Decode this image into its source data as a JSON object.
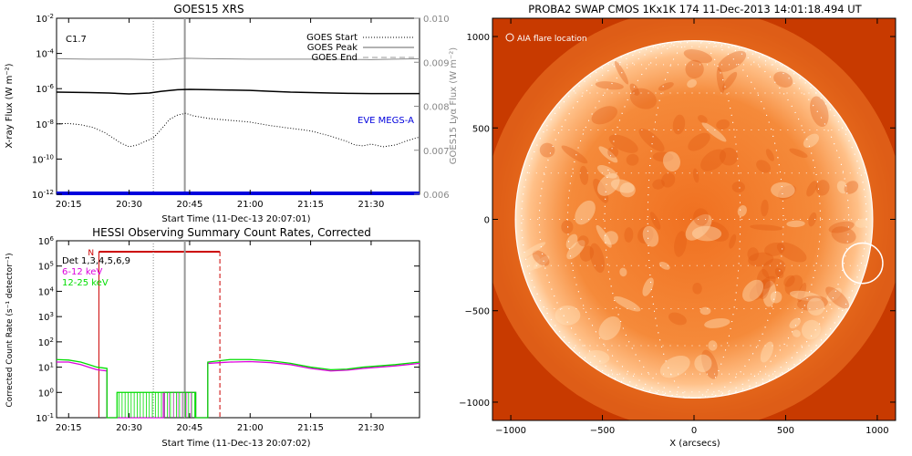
{
  "chart_data": [
    {
      "id": "goes",
      "type": "line",
      "title": "GOES15 XRS",
      "xlabel": "Start Time (11-Dec-13 20:07:01)",
      "ylabel": "X-ray Flux (W m⁻²)",
      "y2label": "GOES15 Lyα Flux (W m⁻²)",
      "xlim": [
        12.0,
        102.0
      ],
      "x_unit": "minutes after 20:00",
      "x_ticks": [
        {
          "v": 15,
          "label": "20:15"
        },
        {
          "v": 30,
          "label": "20:30"
        },
        {
          "v": 45,
          "label": "20:45"
        },
        {
          "v": 60,
          "label": "21:00"
        },
        {
          "v": 75,
          "label": "21:15"
        },
        {
          "v": 90,
          "label": "21:30"
        }
      ],
      "ylim_log": [
        -12,
        -2
      ],
      "y_ticks": [
        {
          "v": -2,
          "base": "10",
          "exp": "-2"
        },
        {
          "v": -4,
          "base": "10",
          "exp": "-4"
        },
        {
          "v": -6,
          "base": "10",
          "exp": "-6"
        },
        {
          "v": -8,
          "base": "10",
          "exp": "-8"
        },
        {
          "v": -10,
          "base": "10",
          "exp": "-10"
        },
        {
          "v": -12,
          "base": "10",
          "exp": "-12"
        }
      ],
      "y2lim": [
        0.006,
        0.01
      ],
      "y2_ticks": [
        "0.006",
        "0.007",
        "0.008",
        "0.009",
        "0.010"
      ],
      "flare_class": "C1.7",
      "markers": {
        "start": 36.0,
        "peak": 43.8,
        "end": null
      },
      "legend": [
        {
          "label": "GOES Start",
          "style": "dotted"
        },
        {
          "label": "GOES Peak",
          "style": "solid"
        },
        {
          "label": "GOES End",
          "style": "dashed"
        }
      ],
      "eve_label": "EVE MEGS-A",
      "series": [
        {
          "axis": "right",
          "color": "#888888",
          "style": "solid",
          "points": [
            [
              12,
              0.00908
            ],
            [
              20,
              0.00907
            ],
            [
              30,
              0.00907
            ],
            [
              36,
              0.00906
            ],
            [
              40,
              0.00907
            ],
            [
              44,
              0.00909
            ],
            [
              50,
              0.00908
            ],
            [
              60,
              0.00907
            ],
            [
              75,
              0.00907
            ],
            [
              90,
              0.00906
            ],
            [
              102,
              0.00908
            ]
          ]
        },
        {
          "axis": "left",
          "color": "#000000",
          "style": "solid",
          "points": [
            [
              12,
              -6.2
            ],
            [
              20,
              -6.22
            ],
            [
              25,
              -6.25
            ],
            [
              30,
              -6.3
            ],
            [
              35,
              -6.25
            ],
            [
              38,
              -6.15
            ],
            [
              42,
              -6.06
            ],
            [
              45,
              -6.04
            ],
            [
              50,
              -6.06
            ],
            [
              55,
              -6.08
            ],
            [
              60,
              -6.1
            ],
            [
              65,
              -6.15
            ],
            [
              70,
              -6.2
            ],
            [
              75,
              -6.22
            ],
            [
              80,
              -6.25
            ],
            [
              85,
              -6.27
            ],
            [
              90,
              -6.28
            ],
            [
              95,
              -6.28
            ],
            [
              102,
              -6.28
            ]
          ]
        },
        {
          "axis": "left",
          "color": "#000000",
          "style": "dotted",
          "points": [
            [
              12,
              -8.0
            ],
            [
              15,
              -7.98
            ],
            [
              18,
              -8.05
            ],
            [
              21,
              -8.2
            ],
            [
              24,
              -8.5
            ],
            [
              26,
              -8.8
            ],
            [
              28,
              -9.1
            ],
            [
              30,
              -9.3
            ],
            [
              32,
              -9.2
            ],
            [
              34,
              -9.0
            ],
            [
              36,
              -8.8
            ],
            [
              38,
              -8.3
            ],
            [
              40,
              -7.75
            ],
            [
              42,
              -7.5
            ],
            [
              44,
              -7.4
            ],
            [
              46,
              -7.55
            ],
            [
              50,
              -7.7
            ],
            [
              55,
              -7.8
            ],
            [
              60,
              -7.9
            ],
            [
              65,
              -8.1
            ],
            [
              70,
              -8.25
            ],
            [
              75,
              -8.4
            ],
            [
              80,
              -8.7
            ],
            [
              84,
              -9.0
            ],
            [
              86,
              -9.2
            ],
            [
              88,
              -9.25
            ],
            [
              90,
              -9.15
            ],
            [
              93,
              -9.3
            ],
            [
              96,
              -9.2
            ],
            [
              99,
              -8.95
            ],
            [
              102,
              -8.75
            ]
          ]
        },
        {
          "axis": "left",
          "color": "#0000dd",
          "style": "thick",
          "points": [
            [
              12,
              -11.95
            ],
            [
              102,
              -11.95
            ]
          ]
        }
      ]
    },
    {
      "id": "hessi",
      "type": "line",
      "title": "HESSI Observing Summary Count Rates, Corrected",
      "xlabel": "Start Time (11-Dec-13 20:07:02)",
      "ylabel": "Corrected Count Rate (s⁻¹ detector⁻¹)",
      "xlim": [
        12.0,
        102.0
      ],
      "x_unit": "minutes after 20:00",
      "x_ticks": [
        {
          "v": 15,
          "label": "20:15"
        },
        {
          "v": 30,
          "label": "20:30"
        },
        {
          "v": 45,
          "label": "20:45"
        },
        {
          "v": 60,
          "label": "21:00"
        },
        {
          "v": 75,
          "label": "21:15"
        },
        {
          "v": 90,
          "label": "21:30"
        }
      ],
      "ylim_log": [
        -1,
        6
      ],
      "y_ticks": [
        {
          "v": -1,
          "base": "10",
          "exp": "-1"
        },
        {
          "v": 0,
          "base": "10",
          "exp": "0"
        },
        {
          "v": 1,
          "base": "10",
          "exp": "1"
        },
        {
          "v": 2,
          "base": "10",
          "exp": "2"
        },
        {
          "v": 3,
          "base": "10",
          "exp": "3"
        },
        {
          "v": 4,
          "base": "10",
          "exp": "4"
        },
        {
          "v": 5,
          "base": "10",
          "exp": "5"
        },
        {
          "v": 6,
          "base": "10",
          "exp": "6"
        }
      ],
      "night_label": "N",
      "night_range": [
        22.5,
        52.5
      ],
      "markers": {
        "start": 36.0,
        "peak": 43.8,
        "end": 52.5
      },
      "legend": [
        {
          "label": "Det 1,3,4,5,6,9",
          "color": "#000000"
        },
        {
          "label": "6-12 keV",
          "color": "#dd00dd"
        },
        {
          "label": "12-25 keV",
          "color": "#00dd00"
        }
      ],
      "series": [
        {
          "name": "6-12 keV",
          "color": "#dd00dd",
          "points": [
            [
              12,
              1.2
            ],
            [
              15,
              1.2
            ],
            [
              18,
              1.1
            ],
            [
              20,
              1.0
            ],
            [
              22,
              0.9
            ],
            [
              24.5,
              0.85
            ],
            [
              24.5,
              -1
            ],
            [
              38.5,
              -1
            ],
            [
              38.5,
              0.0
            ],
            [
              43,
              0.0
            ],
            [
              46.5,
              0.0
            ],
            [
              46.5,
              -1
            ],
            [
              49.5,
              -1
            ],
            [
              49.5,
              1.15
            ],
            [
              55,
              1.2
            ],
            [
              60,
              1.22
            ],
            [
              65,
              1.18
            ],
            [
              70,
              1.1
            ],
            [
              75,
              0.95
            ],
            [
              80,
              0.85
            ],
            [
              84,
              0.88
            ],
            [
              88,
              0.95
            ],
            [
              92,
              1.0
            ],
            [
              96,
              1.05
            ],
            [
              99,
              1.1
            ],
            [
              102,
              1.15
            ]
          ]
        },
        {
          "name": "12-25 keV",
          "color": "#00dd00",
          "points": [
            [
              12,
              1.3
            ],
            [
              15,
              1.28
            ],
            [
              18,
              1.2
            ],
            [
              20,
              1.1
            ],
            [
              22,
              1.0
            ],
            [
              24.5,
              0.95
            ],
            [
              24.5,
              -1
            ],
            [
              27,
              -1
            ],
            [
              27,
              0.0
            ],
            [
              46.5,
              0.0
            ],
            [
              46.5,
              -1
            ],
            [
              49.5,
              -1
            ],
            [
              49.5,
              1.2
            ],
            [
              55,
              1.3
            ],
            [
              60,
              1.3
            ],
            [
              65,
              1.25
            ],
            [
              70,
              1.15
            ],
            [
              75,
              1.0
            ],
            [
              80,
              0.9
            ],
            [
              84,
              0.92
            ],
            [
              88,
              1.0
            ],
            [
              92,
              1.05
            ],
            [
              96,
              1.1
            ],
            [
              99,
              1.15
            ],
            [
              102,
              1.2
            ]
          ]
        }
      ]
    },
    {
      "id": "swap",
      "type": "image",
      "title": "PROBA2 SWAP CMOS 1Kx1K 174 11-Dec-2013 14:01:18.494 UT",
      "xlabel": "X (arcsecs)",
      "xlim": [
        -1100,
        1100
      ],
      "ylim": [
        -1100,
        1100
      ],
      "x_ticks": [
        {
          "v": -1000,
          "label": "−1000"
        },
        {
          "v": -500,
          "label": "−500"
        },
        {
          "v": 0,
          "label": "0"
        },
        {
          "v": 500,
          "label": "500"
        },
        {
          "v": 1000,
          "label": "1000"
        }
      ],
      "y_ticks": [
        {
          "v": -1000,
          "label": "−1000"
        },
        {
          "v": -500,
          "label": "−500"
        },
        {
          "v": 0,
          "label": "0"
        },
        {
          "v": 500,
          "label": "500"
        },
        {
          "v": 1000,
          "label": "1000"
        }
      ],
      "solar_radius": 975,
      "flare_location": {
        "label": "AIA flare location",
        "x": 920,
        "y": -240,
        "r": 110
      },
      "colors": {
        "background": "#d04000",
        "disk": "#f07020",
        "limb": "#ffe0b0"
      }
    }
  ]
}
